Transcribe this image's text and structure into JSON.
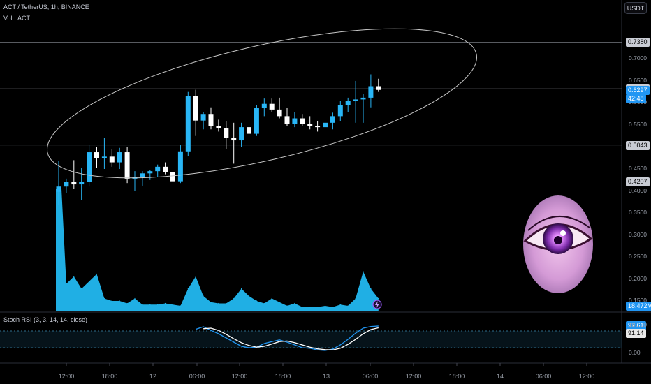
{
  "header": {
    "symbol_line": "ACT / TetherUS, 1h, BINANCE",
    "volume_label": "Vol · ACT",
    "stoch_label": "Stoch RSI (3, 3, 14, 14, close)"
  },
  "currency_button": "USDT",
  "colors": {
    "up": "#29b6f6",
    "down": "#ffffff",
    "volume": "#22b8f0",
    "stoch_k": "#2196f3",
    "stoch_d": "#ffffff",
    "ellipse": "#c8c8c8",
    "hline": "#9598a1"
  },
  "price_axis_ticks": [
    "0.7000",
    "0.6500",
    "0.6000",
    "0.5500",
    "0.5000",
    "0.4500",
    "0.4000",
    "0.3500",
    "0.3000",
    "0.2500",
    "0.2000",
    "0.1500"
  ],
  "price_tags": [
    {
      "label": "0.7380",
      "price": 0.738,
      "style": "grey"
    },
    {
      "label": "0.6322",
      "price": 0.6322,
      "style": "grey"
    },
    {
      "label": "0.6297",
      "price": 0.6297,
      "style": "blue"
    },
    {
      "label": "42:48",
      "price": 0.6105,
      "style": "blue"
    },
    {
      "label": "0.5043",
      "price": 0.5043,
      "style": "grey"
    },
    {
      "label": "0.4207",
      "price": 0.4207,
      "style": "grey"
    }
  ],
  "volume_tag": "18.472M",
  "stoch_axis_ticks": [
    "100.00",
    "0.00"
  ],
  "stoch_tags": [
    {
      "label": "97.61",
      "value": 97.61,
      "style": "blue"
    },
    {
      "label": "91.14",
      "value": 91.14,
      "style": "white"
    }
  ],
  "time_labels": [
    "12:00",
    "18:00",
    "12",
    "06:00",
    "12:00",
    "18:00",
    "13",
    "06:00",
    "12:00",
    "18:00",
    "14",
    "06:00",
    "12:00"
  ],
  "chart_data": {
    "type": "candlestick",
    "ylim": [
      0.12,
      0.78
    ],
    "horizontal_lines": [
      0.738,
      0.6322,
      0.5043,
      0.4207
    ],
    "candles": [
      {
        "o": 0.398,
        "h": 0.468,
        "l": 0.368,
        "c": 0.41
      },
      {
        "o": 0.41,
        "h": 0.428,
        "l": 0.395,
        "c": 0.42
      },
      {
        "o": 0.42,
        "h": 0.47,
        "l": 0.405,
        "c": 0.415
      },
      {
        "o": 0.415,
        "h": 0.452,
        "l": 0.38,
        "c": 0.42
      },
      {
        "o": 0.42,
        "h": 0.505,
        "l": 0.41,
        "c": 0.488
      },
      {
        "o": 0.488,
        "h": 0.5,
        "l": 0.452,
        "c": 0.475
      },
      {
        "o": 0.475,
        "h": 0.52,
        "l": 0.45,
        "c": 0.478
      },
      {
        "o": 0.478,
        "h": 0.495,
        "l": 0.455,
        "c": 0.465
      },
      {
        "o": 0.465,
        "h": 0.498,
        "l": 0.45,
        "c": 0.488
      },
      {
        "o": 0.488,
        "h": 0.5,
        "l": 0.418,
        "c": 0.428
      },
      {
        "o": 0.428,
        "h": 0.445,
        "l": 0.4,
        "c": 0.432
      },
      {
        "o": 0.432,
        "h": 0.445,
        "l": 0.412,
        "c": 0.44
      },
      {
        "o": 0.44,
        "h": 0.448,
        "l": 0.425,
        "c": 0.445
      },
      {
        "o": 0.445,
        "h": 0.46,
        "l": 0.432,
        "c": 0.455
      },
      {
        "o": 0.455,
        "h": 0.465,
        "l": 0.438,
        "c": 0.443
      },
      {
        "o": 0.443,
        "h": 0.452,
        "l": 0.42,
        "c": 0.422
      },
      {
        "o": 0.422,
        "h": 0.505,
        "l": 0.418,
        "c": 0.49
      },
      {
        "o": 0.49,
        "h": 0.625,
        "l": 0.48,
        "c": 0.615
      },
      {
        "o": 0.615,
        "h": 0.63,
        "l": 0.525,
        "c": 0.56
      },
      {
        "o": 0.56,
        "h": 0.58,
        "l": 0.54,
        "c": 0.575
      },
      {
        "o": 0.575,
        "h": 0.59,
        "l": 0.54,
        "c": 0.548
      },
      {
        "o": 0.548,
        "h": 0.562,
        "l": 0.535,
        "c": 0.542
      },
      {
        "o": 0.542,
        "h": 0.558,
        "l": 0.495,
        "c": 0.52
      },
      {
        "o": 0.52,
        "h": 0.555,
        "l": 0.462,
        "c": 0.515
      },
      {
        "o": 0.515,
        "h": 0.555,
        "l": 0.5,
        "c": 0.545
      },
      {
        "o": 0.545,
        "h": 0.56,
        "l": 0.525,
        "c": 0.53
      },
      {
        "o": 0.53,
        "h": 0.595,
        "l": 0.525,
        "c": 0.588
      },
      {
        "o": 0.588,
        "h": 0.61,
        "l": 0.57,
        "c": 0.598
      },
      {
        "o": 0.598,
        "h": 0.61,
        "l": 0.58,
        "c": 0.585
      },
      {
        "o": 0.585,
        "h": 0.612,
        "l": 0.565,
        "c": 0.57
      },
      {
        "o": 0.57,
        "h": 0.588,
        "l": 0.548,
        "c": 0.552
      },
      {
        "o": 0.552,
        "h": 0.58,
        "l": 0.545,
        "c": 0.565
      },
      {
        "o": 0.565,
        "h": 0.575,
        "l": 0.548,
        "c": 0.552
      },
      {
        "o": 0.552,
        "h": 0.57,
        "l": 0.54,
        "c": 0.548
      },
      {
        "o": 0.548,
        "h": 0.558,
        "l": 0.535,
        "c": 0.545
      },
      {
        "o": 0.545,
        "h": 0.56,
        "l": 0.53,
        "c": 0.555
      },
      {
        "o": 0.555,
        "h": 0.578,
        "l": 0.54,
        "c": 0.57
      },
      {
        "o": 0.57,
        "h": 0.605,
        "l": 0.558,
        "c": 0.595
      },
      {
        "o": 0.595,
        "h": 0.612,
        "l": 0.58,
        "c": 0.605
      },
      {
        "o": 0.605,
        "h": 0.65,
        "l": 0.555,
        "c": 0.608
      },
      {
        "o": 0.608,
        "h": 0.62,
        "l": 0.555,
        "c": 0.612
      },
      {
        "o": 0.612,
        "h": 0.665,
        "l": 0.59,
        "c": 0.638
      },
      {
        "o": 0.638,
        "h": 0.655,
        "l": 0.625,
        "c": 0.6297
      }
    ],
    "volume_ylim": [
      0,
      100
    ],
    "volume": [
      100,
      22,
      28,
      18,
      24,
      30,
      10,
      8,
      8,
      6,
      10,
      5,
      5,
      5,
      6,
      5,
      4,
      18,
      28,
      12,
      7,
      6,
      6,
      10,
      18,
      12,
      8,
      6,
      10,
      7,
      4,
      6,
      3,
      3,
      3,
      4,
      3,
      5,
      4,
      10,
      32,
      18,
      10
    ],
    "stoch_ylim": [
      0,
      100
    ],
    "stoch_k": [
      null,
      null,
      null,
      null,
      null,
      null,
      null,
      null,
      null,
      null,
      null,
      null,
      null,
      null,
      null,
      null,
      null,
      null,
      86,
      95,
      82,
      70,
      55,
      40,
      25,
      20,
      22,
      35,
      42,
      48,
      40,
      30,
      20,
      18,
      12,
      10,
      15,
      30,
      50,
      72,
      90,
      96,
      97.61
    ],
    "stoch_d": [
      null,
      null,
      null,
      null,
      null,
      null,
      null,
      null,
      null,
      null,
      null,
      null,
      null,
      null,
      null,
      null,
      null,
      null,
      null,
      88,
      90,
      82,
      68,
      52,
      38,
      28,
      22,
      25,
      33,
      42,
      44,
      38,
      30,
      22,
      16,
      13,
      12,
      18,
      32,
      50,
      70,
      85,
      91.14
    ]
  }
}
